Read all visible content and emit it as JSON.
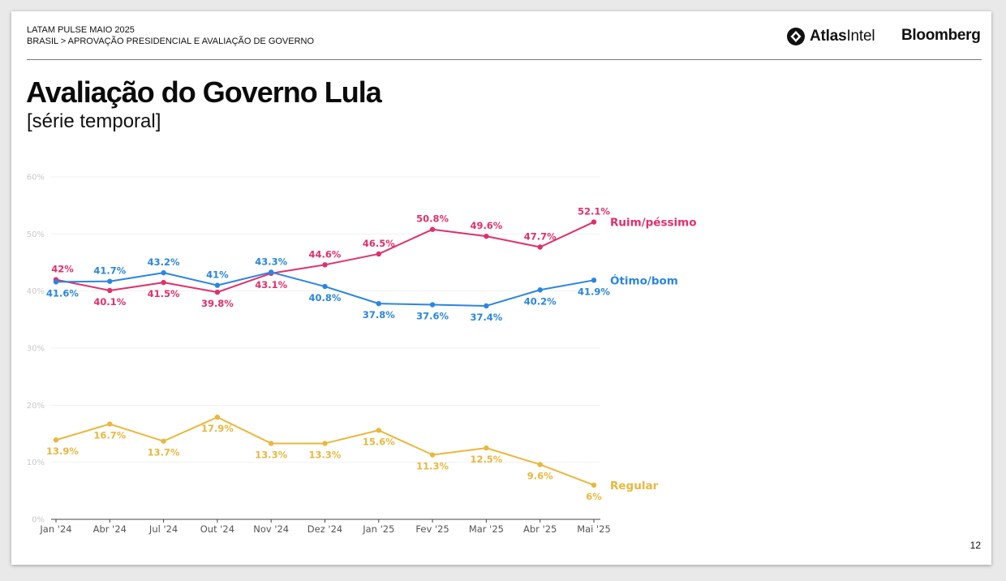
{
  "header": {
    "line1": "LATAM PULSE MAIO 2025",
    "line2": "BRASIL > APROVAÇÃO PRESIDENCIAL E AVALIAÇÃO DE GOVERNO",
    "brand_atlas_bold": "Atlas",
    "brand_atlas_rest": "Intel",
    "brand_bloomberg": "Bloomberg"
  },
  "title": "Avaliação do Governo Lula",
  "subtitle": "[série temporal]",
  "page_number": "12",
  "chart_data": {
    "type": "line",
    "categories": [
      "Jan '24",
      "Abr '24",
      "Jul '24",
      "Out '24",
      "Nov '24",
      "Dez '24",
      "Jan '25",
      "Fev '25",
      "Mar '25",
      "Abr '25",
      "Mai '25"
    ],
    "ylim": [
      0,
      60
    ],
    "yticks": [
      0,
      10,
      20,
      30,
      40,
      50,
      60
    ],
    "ytick_labels": [
      "0%",
      "10%",
      "20%",
      "30%",
      "40%",
      "50%",
      "60%"
    ],
    "grid": true,
    "series": [
      {
        "name": "Ruim/péssimo",
        "color": "#e0306a",
        "values": [
          42,
          40.1,
          41.5,
          39.8,
          43.1,
          44.6,
          46.5,
          50.8,
          49.6,
          47.7,
          52.1
        ],
        "labels": [
          "42%",
          "40.1%",
          "41.5%",
          "39.8%",
          "43.1%",
          "44.6%",
          "46.5%",
          "50.8%",
          "49.6%",
          "47.7%",
          "52.1%"
        ],
        "label_positions": [
          "above",
          "below",
          "below",
          "below",
          "below",
          "above",
          "above",
          "above",
          "above",
          "above",
          "above"
        ]
      },
      {
        "name": "Ótimo/bom",
        "color": "#2a86e0",
        "values": [
          41.6,
          41.7,
          43.2,
          41,
          43.3,
          40.8,
          37.8,
          37.6,
          37.4,
          40.2,
          41.9
        ],
        "labels": [
          "41.6%",
          "41.7%",
          "43.2%",
          "41%",
          "43.3%",
          "40.8%",
          "37.8%",
          "37.6%",
          "37.4%",
          "40.2%",
          "41.9%"
        ],
        "label_positions": [
          "below",
          "above",
          "above",
          "above",
          "above",
          "below",
          "below",
          "below",
          "below",
          "below",
          "below"
        ]
      },
      {
        "name": "Regular",
        "color": "#e8b83e",
        "values": [
          13.9,
          16.7,
          13.7,
          17.9,
          13.3,
          13.3,
          15.6,
          11.3,
          12.5,
          9.6,
          6
        ],
        "labels": [
          "13.9%",
          "16.7%",
          "13.7%",
          "17.9%",
          "13.3%",
          "13.3%",
          "15.6%",
          "11.3%",
          "12.5%",
          "9.6%",
          "6%"
        ],
        "label_positions": [
          "below",
          "below",
          "below",
          "below",
          "below",
          "below",
          "below",
          "below",
          "below",
          "below",
          "below"
        ]
      }
    ]
  }
}
